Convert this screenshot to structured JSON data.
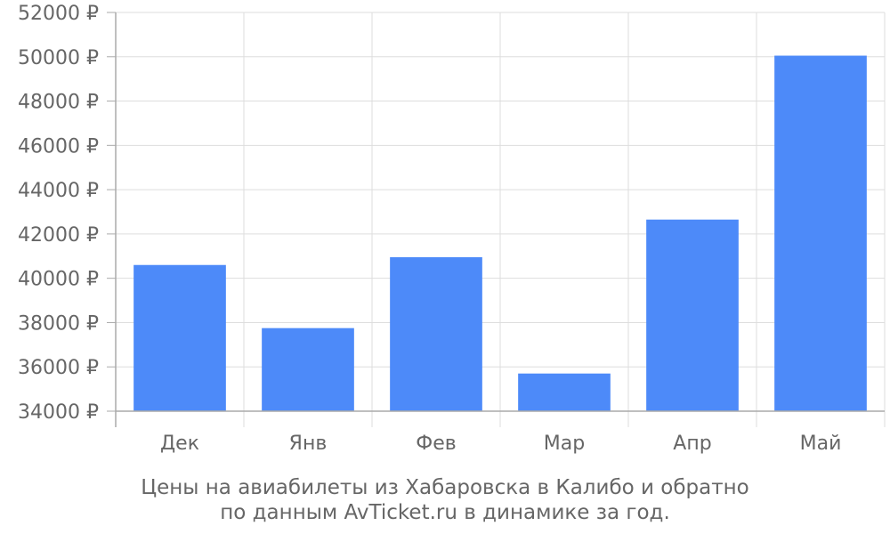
{
  "chart_data": {
    "type": "bar",
    "categories": [
      "Дек",
      "Янв",
      "Фев",
      "Мар",
      "Апр",
      "Май"
    ],
    "values": [
      40600,
      37750,
      40950,
      35700,
      42650,
      50050
    ],
    "ylim": [
      34000,
      52000
    ],
    "yticks": [
      34000,
      36000,
      38000,
      40000,
      42000,
      44000,
      46000,
      48000,
      50000,
      52000
    ],
    "ytick_suffix": " ₽",
    "grid": true,
    "legend": "none",
    "colors": {
      "bar": "#4d8af9",
      "grid": "#dddddd",
      "axis": "#aaaaaa",
      "text": "#666666"
    }
  },
  "caption": {
    "line1": "Цены на авиабилеты из Хабаровска в Калибо и обратно",
    "line2": "по данным AvTicket.ru в динамике за год."
  }
}
